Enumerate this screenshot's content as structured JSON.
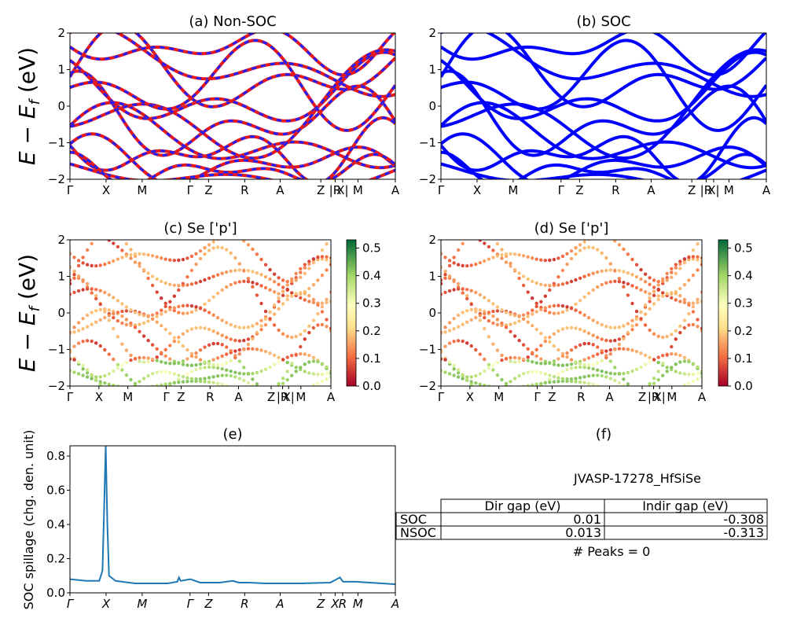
{
  "ylabel": "E − E_f (eV)",
  "ylabel_parts": {
    "main": "E − E",
    "sub": "f",
    "tail": " (eV)"
  },
  "kpath": [
    "Γ",
    "X",
    "M",
    "Γ",
    "Z",
    "R",
    "A",
    "Z",
    "|R",
    "X|",
    "M",
    "A"
  ],
  "kpath_e": [
    "Γ",
    "X",
    "M",
    "Γ",
    "Z",
    "R",
    "A",
    "Z",
    "X",
    "R",
    "M",
    "A"
  ],
  "kpos": [
    0,
    0.111,
    0.222,
    0.369,
    0.426,
    0.537,
    0.646,
    0.771,
    0.815,
    0.838,
    0.885,
    1.0
  ],
  "energy_ticks": [
    "2",
    "1",
    "0",
    "−1",
    "−2"
  ],
  "colorbar_ticks": [
    "0.5",
    "0.4",
    "0.3",
    "0.2",
    "0.1",
    "0.0"
  ],
  "colors": {
    "nonsoc_a": "#e41a1c",
    "nonsoc_b": "#1f1fff",
    "soc": "#0000ff",
    "spillage": "#1f77b4"
  },
  "chart_data": [
    {
      "type": "line",
      "title": "(a) Non-SOC",
      "ylabel": "E − E_f (eV)",
      "ylim": [
        -2,
        2
      ],
      "series": [
        {
          "name": "",
          "x": [
            0,
            0.05,
            0.111,
            0.17,
            0.222,
            0.3,
            0.369
          ],
          "values": [
            0.0,
            0.5,
            1.6,
            1.1,
            0.9,
            1.3,
            2.0
          ]
        },
        {
          "name": "",
          "x": [
            0,
            0.05,
            0.111,
            0.17,
            0.222,
            0.3,
            0.369
          ],
          "values": [
            -1.0,
            -0.8,
            0.0,
            0.6,
            -0.2,
            -1.4,
            -2.0
          ]
        },
        {
          "name": "",
          "x": [
            0.369,
            0.426,
            0.48,
            0.537,
            0.6,
            0.646,
            0.7,
            0.771
          ],
          "values": [
            -0.1,
            0.9,
            -0.4,
            0.3,
            1.1,
            1.2,
            0.7,
            1.8
          ]
        },
        {
          "name": "",
          "x": [
            0.369,
            0.426,
            0.48,
            0.537,
            0.6,
            0.646,
            0.7,
            0.771
          ],
          "values": [
            -1.3,
            -1.7,
            -0.9,
            -1.9,
            -2.0,
            -1.6,
            -2.0,
            -1.5
          ]
        }
      ]
    },
    {
      "type": "line",
      "title": "(b) SOC",
      "ylim": [
        -2,
        2
      ],
      "series": [
        {
          "name": "",
          "x": [
            0,
            0.05,
            0.111,
            0.17,
            0.222,
            0.3,
            0.369
          ],
          "values": [
            0.0,
            0.5,
            1.6,
            1.1,
            0.9,
            1.3,
            2.0
          ]
        },
        {
          "name": "",
          "x": [
            0,
            0.05,
            0.111,
            0.17,
            0.222,
            0.3,
            0.369
          ],
          "values": [
            -1.0,
            -0.8,
            0.0,
            0.6,
            -0.2,
            -1.4,
            -2.0
          ]
        },
        {
          "name": "",
          "x": [
            0.369,
            0.426,
            0.48,
            0.537,
            0.6,
            0.646,
            0.7,
            0.771
          ],
          "values": [
            -0.1,
            0.9,
            -0.4,
            0.3,
            1.1,
            1.2,
            0.7,
            1.8
          ]
        },
        {
          "name": "",
          "x": [
            0.369,
            0.426,
            0.48,
            0.537,
            0.6,
            0.646,
            0.7,
            0.771
          ],
          "values": [
            -1.3,
            -1.7,
            -0.9,
            -1.9,
            -2.0,
            -1.6,
            -2.0,
            -1.5
          ]
        }
      ]
    },
    {
      "type": "scatter",
      "title": "(c)  Se ['p']",
      "ylabel": "E − E_f (eV)",
      "ylim": [
        -2,
        2
      ],
      "colorbar": [
        0.0,
        0.53
      ]
    },
    {
      "type": "scatter",
      "title": "(d) Se ['p']",
      "ylim": [
        -2,
        2
      ],
      "colorbar": [
        0.0,
        0.53
      ]
    },
    {
      "type": "line",
      "title": "(e)",
      "ylabel": "SOC spillage (chg. den. unit)",
      "ylim": [
        0,
        0.86
      ],
      "yticks": [
        "0.0",
        "0.2",
        "0.4",
        "0.6",
        "0.8"
      ],
      "x": [
        0,
        0.05,
        0.09,
        0.1,
        0.105,
        0.11,
        0.115,
        0.12,
        0.14,
        0.2,
        0.3,
        0.33,
        0.335,
        0.34,
        0.37,
        0.4,
        0.46,
        0.5,
        0.52,
        0.55,
        0.6,
        0.7,
        0.8,
        0.83,
        0.835,
        0.84,
        0.88,
        0.92,
        0.96,
        1.0
      ],
      "values": [
        0.08,
        0.07,
        0.07,
        0.13,
        0.5,
        0.86,
        0.4,
        0.1,
        0.07,
        0.055,
        0.055,
        0.065,
        0.09,
        0.07,
        0.08,
        0.06,
        0.06,
        0.07,
        0.06,
        0.06,
        0.055,
        0.055,
        0.06,
        0.09,
        0.075,
        0.065,
        0.065,
        0.06,
        0.055,
        0.05
      ]
    }
  ],
  "info": {
    "title": "(f)",
    "material": "JVASP-17278_HfSiSe",
    "columns": [
      "",
      "Dir gap (eV)",
      "Indir gap (eV)"
    ],
    "rows": [
      [
        "SOC",
        "0.01",
        "-0.308"
      ],
      [
        "NSOC",
        "0.013",
        "-0.313"
      ]
    ],
    "peaks": "# Peaks = 0"
  }
}
